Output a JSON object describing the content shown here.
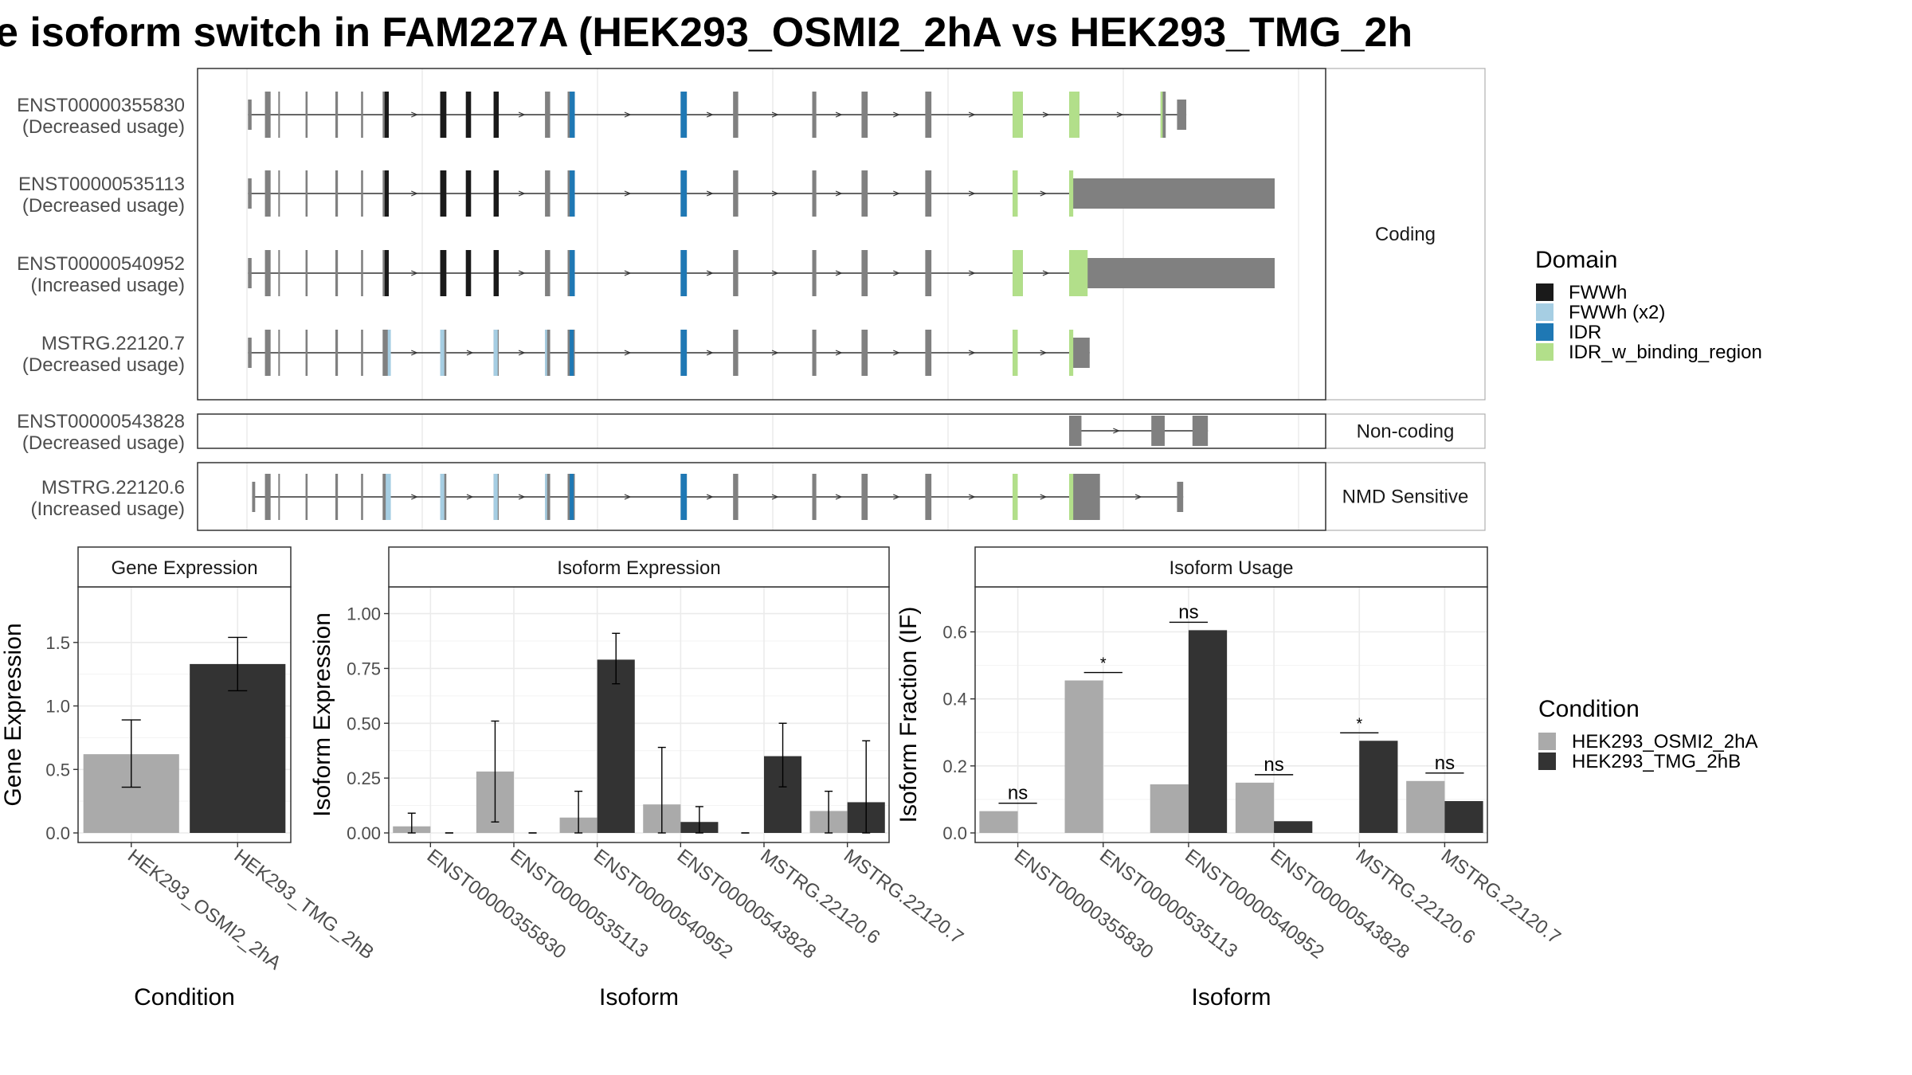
{
  "title": "e isoform switch in FAM227A (HEK293_OSMI2_2hA vs HEK293_TMG_2h",
  "colors": {
    "exon": "#808080",
    "FWWh": "#1a1a1a",
    "FWWh (x2)": "#a6cee3",
    "IDR": "#1f78b4",
    "IDR_w_binding_region": "#b2df8a",
    "cond1": "#aaaaaa",
    "cond2": "#333333"
  },
  "structure": {
    "panels": [
      {
        "strip": "Coding",
        "isoforms": [
          {
            "id": "ENST00000355830",
            "usage": "(Decreased usage)",
            "coding": true,
            "exons": [
              [
                1,
                4.5
              ],
              [
                17.5,
                23
              ],
              [
                30.5,
                32
              ],
              [
                57,
                59
              ],
              [
                86,
                88.5
              ],
              [
                111,
                113
              ],
              [
                132,
                138
              ],
              [
                188,
                194
              ],
              [
                213,
                218
              ],
              [
                240,
                245
              ],
              [
                290,
                295
              ],
              [
                312,
                319
              ],
              [
                422,
                428
              ],
              [
                473,
                478
              ],
              [
                550,
                554
              ],
              [
                598,
                604
              ],
              [
                660,
                666
              ],
              [
                745,
                755
              ],
              [
                800,
                810
              ],
              [
                889,
                894
              ],
              [
                905,
                914
              ]
            ],
            "domains": [
              [
                134,
                138,
                "FWWh"
              ],
              [
                188,
                194,
                "FWWh"
              ],
              [
                213,
                218,
                "FWWh"
              ],
              [
                240,
                245,
                "FWWh"
              ],
              [
                314,
                319,
                "IDR"
              ],
              [
                422,
                428,
                "IDR"
              ],
              [
                745,
                755,
                "IDR_w_binding_region"
              ],
              [
                800,
                810,
                "IDR_w_binding_region"
              ],
              [
                889,
                891,
                "IDR_w_binding_region"
              ]
            ]
          },
          {
            "id": "ENST00000535113",
            "usage": "(Decreased usage)",
            "coding": true,
            "exons": [
              [
                1,
                4.5
              ],
              [
                17.5,
                23
              ],
              [
                30.5,
                32
              ],
              [
                57,
                59
              ],
              [
                86,
                88.5
              ],
              [
                111,
                113
              ],
              [
                132,
                138
              ],
              [
                188,
                194
              ],
              [
                213,
                218
              ],
              [
                240,
                245
              ],
              [
                290,
                295
              ],
              [
                312,
                319
              ],
              [
                422,
                428
              ],
              [
                473,
                478
              ],
              [
                550,
                554
              ],
              [
                598,
                604
              ],
              [
                660,
                666
              ],
              [
                745,
                750
              ],
              [
                800,
                1000
              ]
            ],
            "domains": [
              [
                134,
                138,
                "FWWh"
              ],
              [
                188,
                194,
                "FWWh"
              ],
              [
                213,
                218,
                "FWWh"
              ],
              [
                240,
                245,
                "FWWh"
              ],
              [
                314,
                319,
                "IDR"
              ],
              [
                422,
                428,
                "IDR"
              ],
              [
                745,
                750,
                "IDR_w_binding_region"
              ],
              [
                800,
                804,
                "IDR_w_binding_region"
              ]
            ]
          },
          {
            "id": "ENST00000540952",
            "usage": "(Increased usage)",
            "coding": true,
            "exons": [
              [
                1,
                4.5
              ],
              [
                17.5,
                23
              ],
              [
                30.5,
                32
              ],
              [
                57,
                59
              ],
              [
                86,
                88.5
              ],
              [
                111,
                113
              ],
              [
                132,
                138
              ],
              [
                188,
                194
              ],
              [
                213,
                218
              ],
              [
                240,
                245
              ],
              [
                290,
                295
              ],
              [
                312,
                319
              ],
              [
                422,
                428
              ],
              [
                473,
                478
              ],
              [
                550,
                554
              ],
              [
                598,
                604
              ],
              [
                660,
                666
              ],
              [
                745,
                755
              ],
              [
                800,
                1000
              ]
            ],
            "domains": [
              [
                134,
                138,
                "FWWh"
              ],
              [
                188,
                194,
                "FWWh"
              ],
              [
                213,
                218,
                "FWWh"
              ],
              [
                240,
                245,
                "FWWh"
              ],
              [
                314,
                319,
                "IDR"
              ],
              [
                422,
                428,
                "IDR"
              ],
              [
                745,
                755,
                "IDR_w_binding_region"
              ],
              [
                800,
                818,
                "IDR_w_binding_region"
              ]
            ]
          },
          {
            "id": "MSTRG.22120.7",
            "usage": "(Decreased usage)",
            "coding": true,
            "exons": [
              [
                1,
                4.5
              ],
              [
                17.5,
                23
              ],
              [
                30.5,
                32
              ],
              [
                57,
                59
              ],
              [
                86,
                88.5
              ],
              [
                111,
                113
              ],
              [
                132,
                138
              ],
              [
                188,
                194
              ],
              [
                240,
                245
              ],
              [
                290,
                295
              ],
              [
                312,
                319
              ],
              [
                422,
                428
              ],
              [
                473,
                478
              ],
              [
                550,
                554
              ],
              [
                598,
                604
              ],
              [
                660,
                666
              ],
              [
                745,
                750
              ],
              [
                800,
                820
              ]
            ],
            "domains": [
              [
                137,
                140,
                "FWWh (x2)"
              ],
              [
                188,
                192,
                "FWWh (x2)"
              ],
              [
                240,
                244,
                "FWWh (x2)"
              ],
              [
                290,
                292,
                "FWWh (x2)"
              ],
              [
                314,
                318,
                "IDR"
              ],
              [
                422,
                428,
                "IDR"
              ],
              [
                745,
                750,
                "IDR_w_binding_region"
              ],
              [
                800,
                804,
                "IDR_w_binding_region"
              ]
            ]
          }
        ]
      },
      {
        "strip": "Non-coding",
        "isoforms": [
          {
            "id": "ENST00000543828",
            "usage": "(Decreased usage)",
            "coding": false,
            "exons": [
              [
                800,
                812
              ],
              [
                880,
                893
              ],
              [
                920,
                935
              ]
            ],
            "domains": []
          }
        ]
      },
      {
        "strip": "NMD Sensitive",
        "isoforms": [
          {
            "id": "MSTRG.22120.6",
            "usage": "(Increased usage)",
            "coding": true,
            "exons": [
              [
                5,
                8
              ],
              [
                17.5,
                23
              ],
              [
                30.5,
                32
              ],
              [
                57,
                59
              ],
              [
                86,
                88.5
              ],
              [
                111,
                113
              ],
              [
                132,
                138
              ],
              [
                188,
                194
              ],
              [
                240,
                245
              ],
              [
                290,
                295
              ],
              [
                312,
                319
              ],
              [
                422,
                428
              ],
              [
                473,
                478
              ],
              [
                550,
                554
              ],
              [
                598,
                604
              ],
              [
                660,
                666
              ],
              [
                745,
                750
              ],
              [
                800,
                830
              ],
              [
                905,
                911
              ]
            ],
            "domains": [
              [
                135,
                140,
                "FWWh (x2)"
              ],
              [
                188,
                192,
                "FWWh (x2)"
              ],
              [
                240,
                244,
                "FWWh (x2)"
              ],
              [
                290,
                292,
                "FWWh (x2)"
              ],
              [
                314,
                318,
                "IDR"
              ],
              [
                422,
                428,
                "IDR"
              ],
              [
                745,
                750,
                "IDR_w_binding_region"
              ],
              [
                800,
                804,
                "IDR_w_binding_region"
              ]
            ]
          }
        ]
      }
    ],
    "domain_legend": {
      "title": "Domain",
      "entries": [
        "FWWh",
        "FWWh (x2)",
        "IDR",
        "IDR_w_binding_region"
      ]
    }
  },
  "chart_data": [
    {
      "type": "bar",
      "strip": "Gene Expression",
      "xlabel": "Condition",
      "ylabel": "Gene Expression",
      "ylim": [
        0,
        1.9
      ],
      "yticks": [
        0.0,
        0.5,
        1.0,
        1.5
      ],
      "ytick_labels": [
        "0.0",
        "0.5",
        "1.0",
        "1.5"
      ],
      "categories": [
        "HEK293_OSMI2_2hA",
        "HEK293_TMG_2hB"
      ],
      "values": [
        0.62,
        1.33
      ],
      "errors": [
        [
          0.36,
          0.89
        ],
        [
          1.12,
          1.54
        ]
      ]
    },
    {
      "type": "bar",
      "strip": "Isoform Expression",
      "xlabel": "Isoform",
      "ylabel": "Isoform Expression",
      "ylim": [
        0,
        1.1
      ],
      "yticks": [
        0.0,
        0.25,
        0.5,
        0.75,
        1.0
      ],
      "ytick_labels": [
        "0.00",
        "0.25",
        "0.50",
        "0.75",
        "1.00"
      ],
      "categories": [
        "ENST00000355830",
        "ENST00000535113",
        "ENST00000540952",
        "ENST00000543828",
        "MSTRG.22120.6",
        "MSTRG.22120.7"
      ],
      "series": [
        {
          "name": "HEK293_OSMI2_2hA",
          "values": [
            0.03,
            0.28,
            0.07,
            0.13,
            0.0,
            0.1
          ],
          "errors": [
            [
              0.0,
              0.09
            ],
            [
              0.05,
              0.51
            ],
            [
              0.0,
              0.19
            ],
            [
              0.0,
              0.39
            ],
            [
              0.0,
              0.0
            ],
            [
              0.0,
              0.19
            ]
          ]
        },
        {
          "name": "HEK293_TMG_2hB",
          "values": [
            0.0,
            0.0,
            0.79,
            0.05,
            0.35,
            0.14
          ],
          "errors": [
            [
              0.0,
              0.0
            ],
            [
              0.0,
              0.0
            ],
            [
              0.68,
              0.91
            ],
            [
              0.0,
              0.12
            ],
            [
              0.21,
              0.5
            ],
            [
              0.0,
              0.42
            ]
          ]
        }
      ]
    },
    {
      "type": "bar",
      "strip": "Isoform Usage",
      "xlabel": "Isoform",
      "ylabel": "Isoform Fraction (IF)",
      "ylim": [
        0,
        0.72
      ],
      "yticks": [
        0.0,
        0.2,
        0.4,
        0.6
      ],
      "ytick_labels": [
        "0.0",
        "0.2",
        "0.4",
        "0.6"
      ],
      "categories": [
        "ENST00000355830",
        "ENST00000535113",
        "ENST00000540952",
        "ENST00000543828",
        "MSTRG.22120.6",
        "MSTRG.22120.7"
      ],
      "series": [
        {
          "name": "HEK293_OSMI2_2hA",
          "values": [
            0.065,
            0.455,
            0.145,
            0.15,
            0.0,
            0.155
          ]
        },
        {
          "name": "HEK293_TMG_2hB",
          "values": [
            0.0,
            0.0,
            0.605,
            0.035,
            0.275,
            0.095
          ]
        }
      ],
      "significance": [
        "ns",
        "*",
        "ns",
        "ns",
        "*",
        "ns"
      ]
    }
  ],
  "condition_legend": {
    "title": "Condition",
    "entries": [
      "HEK293_OSMI2_2hA",
      "HEK293_TMG_2hB"
    ]
  }
}
